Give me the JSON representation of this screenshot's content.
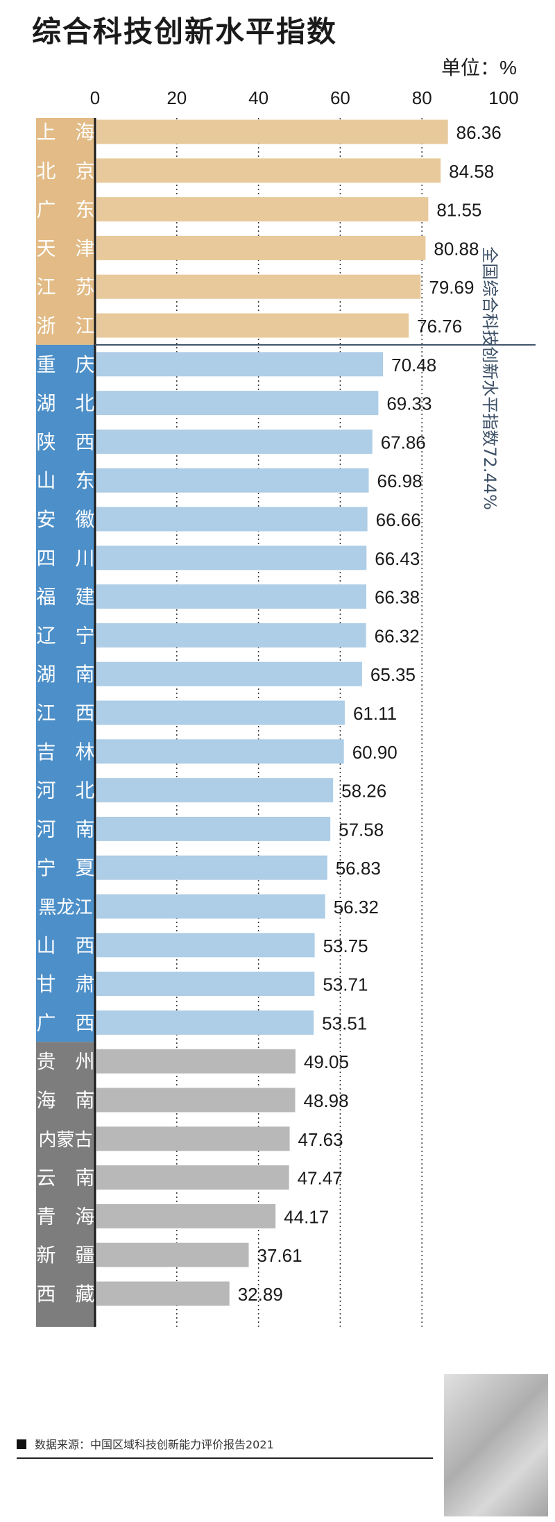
{
  "title": "综合科技创新水平指数",
  "unit": "单位：%",
  "source": "数据来源：中国区域科技创新能力评价报告2021",
  "colors": {
    "tier1_bar": "#e8c99b",
    "tier1_label_bg": "#e2bb86",
    "tier2_bar": "#aecde6",
    "tier2_label_bg": "#4d8fc8",
    "tier3_bar": "#b8b8b8",
    "tier3_label_bg": "#7d7d7d",
    "axis": "#1a1a1a",
    "grid": "#333333",
    "divider": "#3c4f66",
    "annotation": "#3c4f66"
  },
  "chart_data": {
    "type": "bar",
    "orientation": "horizontal",
    "title": "综合科技创新水平指数",
    "unit": "单位：%",
    "xlim": [
      0,
      100
    ],
    "xticks": [
      "0",
      "20",
      "40",
      "60",
      "80",
      "100"
    ],
    "grid": "dotted vertical lines at 20, 40, 60, 80",
    "categories": [
      "上 海",
      "北 京",
      "广 东",
      "天 津",
      "江 苏",
      "浙 江",
      "重 庆",
      "湖 北",
      "陕 西",
      "山 东",
      "安 徽",
      "四 川",
      "福 建",
      "辽 宁",
      "湖 南",
      "江 西",
      "吉 林",
      "河 北",
      "河 南",
      "宁 夏",
      "黑龙江",
      "山 西",
      "甘 肃",
      "广 西",
      "贵 州",
      "海 南",
      "内蒙古",
      "云 南",
      "青 海",
      "新 疆",
      "西 藏"
    ],
    "values": [
      86.36,
      84.58,
      81.55,
      80.88,
      79.69,
      76.76,
      70.48,
      69.33,
      67.86,
      66.98,
      66.66,
      66.43,
      66.38,
      66.32,
      65.35,
      61.11,
      60.9,
      58.26,
      57.58,
      56.83,
      56.32,
      53.75,
      53.71,
      53.51,
      49.05,
      48.98,
      47.63,
      47.47,
      44.17,
      37.61,
      32.89
    ],
    "value_labels": [
      "86.36",
      "84.58",
      "81.55",
      "80.88",
      "79.69",
      "76.76",
      "70.48",
      "69.33",
      "67.86",
      "66.98",
      "66.66",
      "66.43",
      "66.38",
      "66.32",
      "65.35",
      "61.11",
      "60.90",
      "58.26",
      "57.58",
      "56.83",
      "56.32",
      "53.75",
      "53.71",
      "53.51",
      "49.05",
      "48.98",
      "47.63",
      "47.47",
      "44.17",
      "37.61",
      "32.89"
    ],
    "tiers": [
      1,
      1,
      1,
      1,
      1,
      1,
      2,
      2,
      2,
      2,
      2,
      2,
      2,
      2,
      2,
      2,
      2,
      2,
      2,
      2,
      2,
      2,
      2,
      2,
      3,
      3,
      3,
      3,
      3,
      3,
      3
    ],
    "reference": {
      "value": 72.44,
      "label": "全国综合科技创新水平指数72.44%"
    }
  }
}
